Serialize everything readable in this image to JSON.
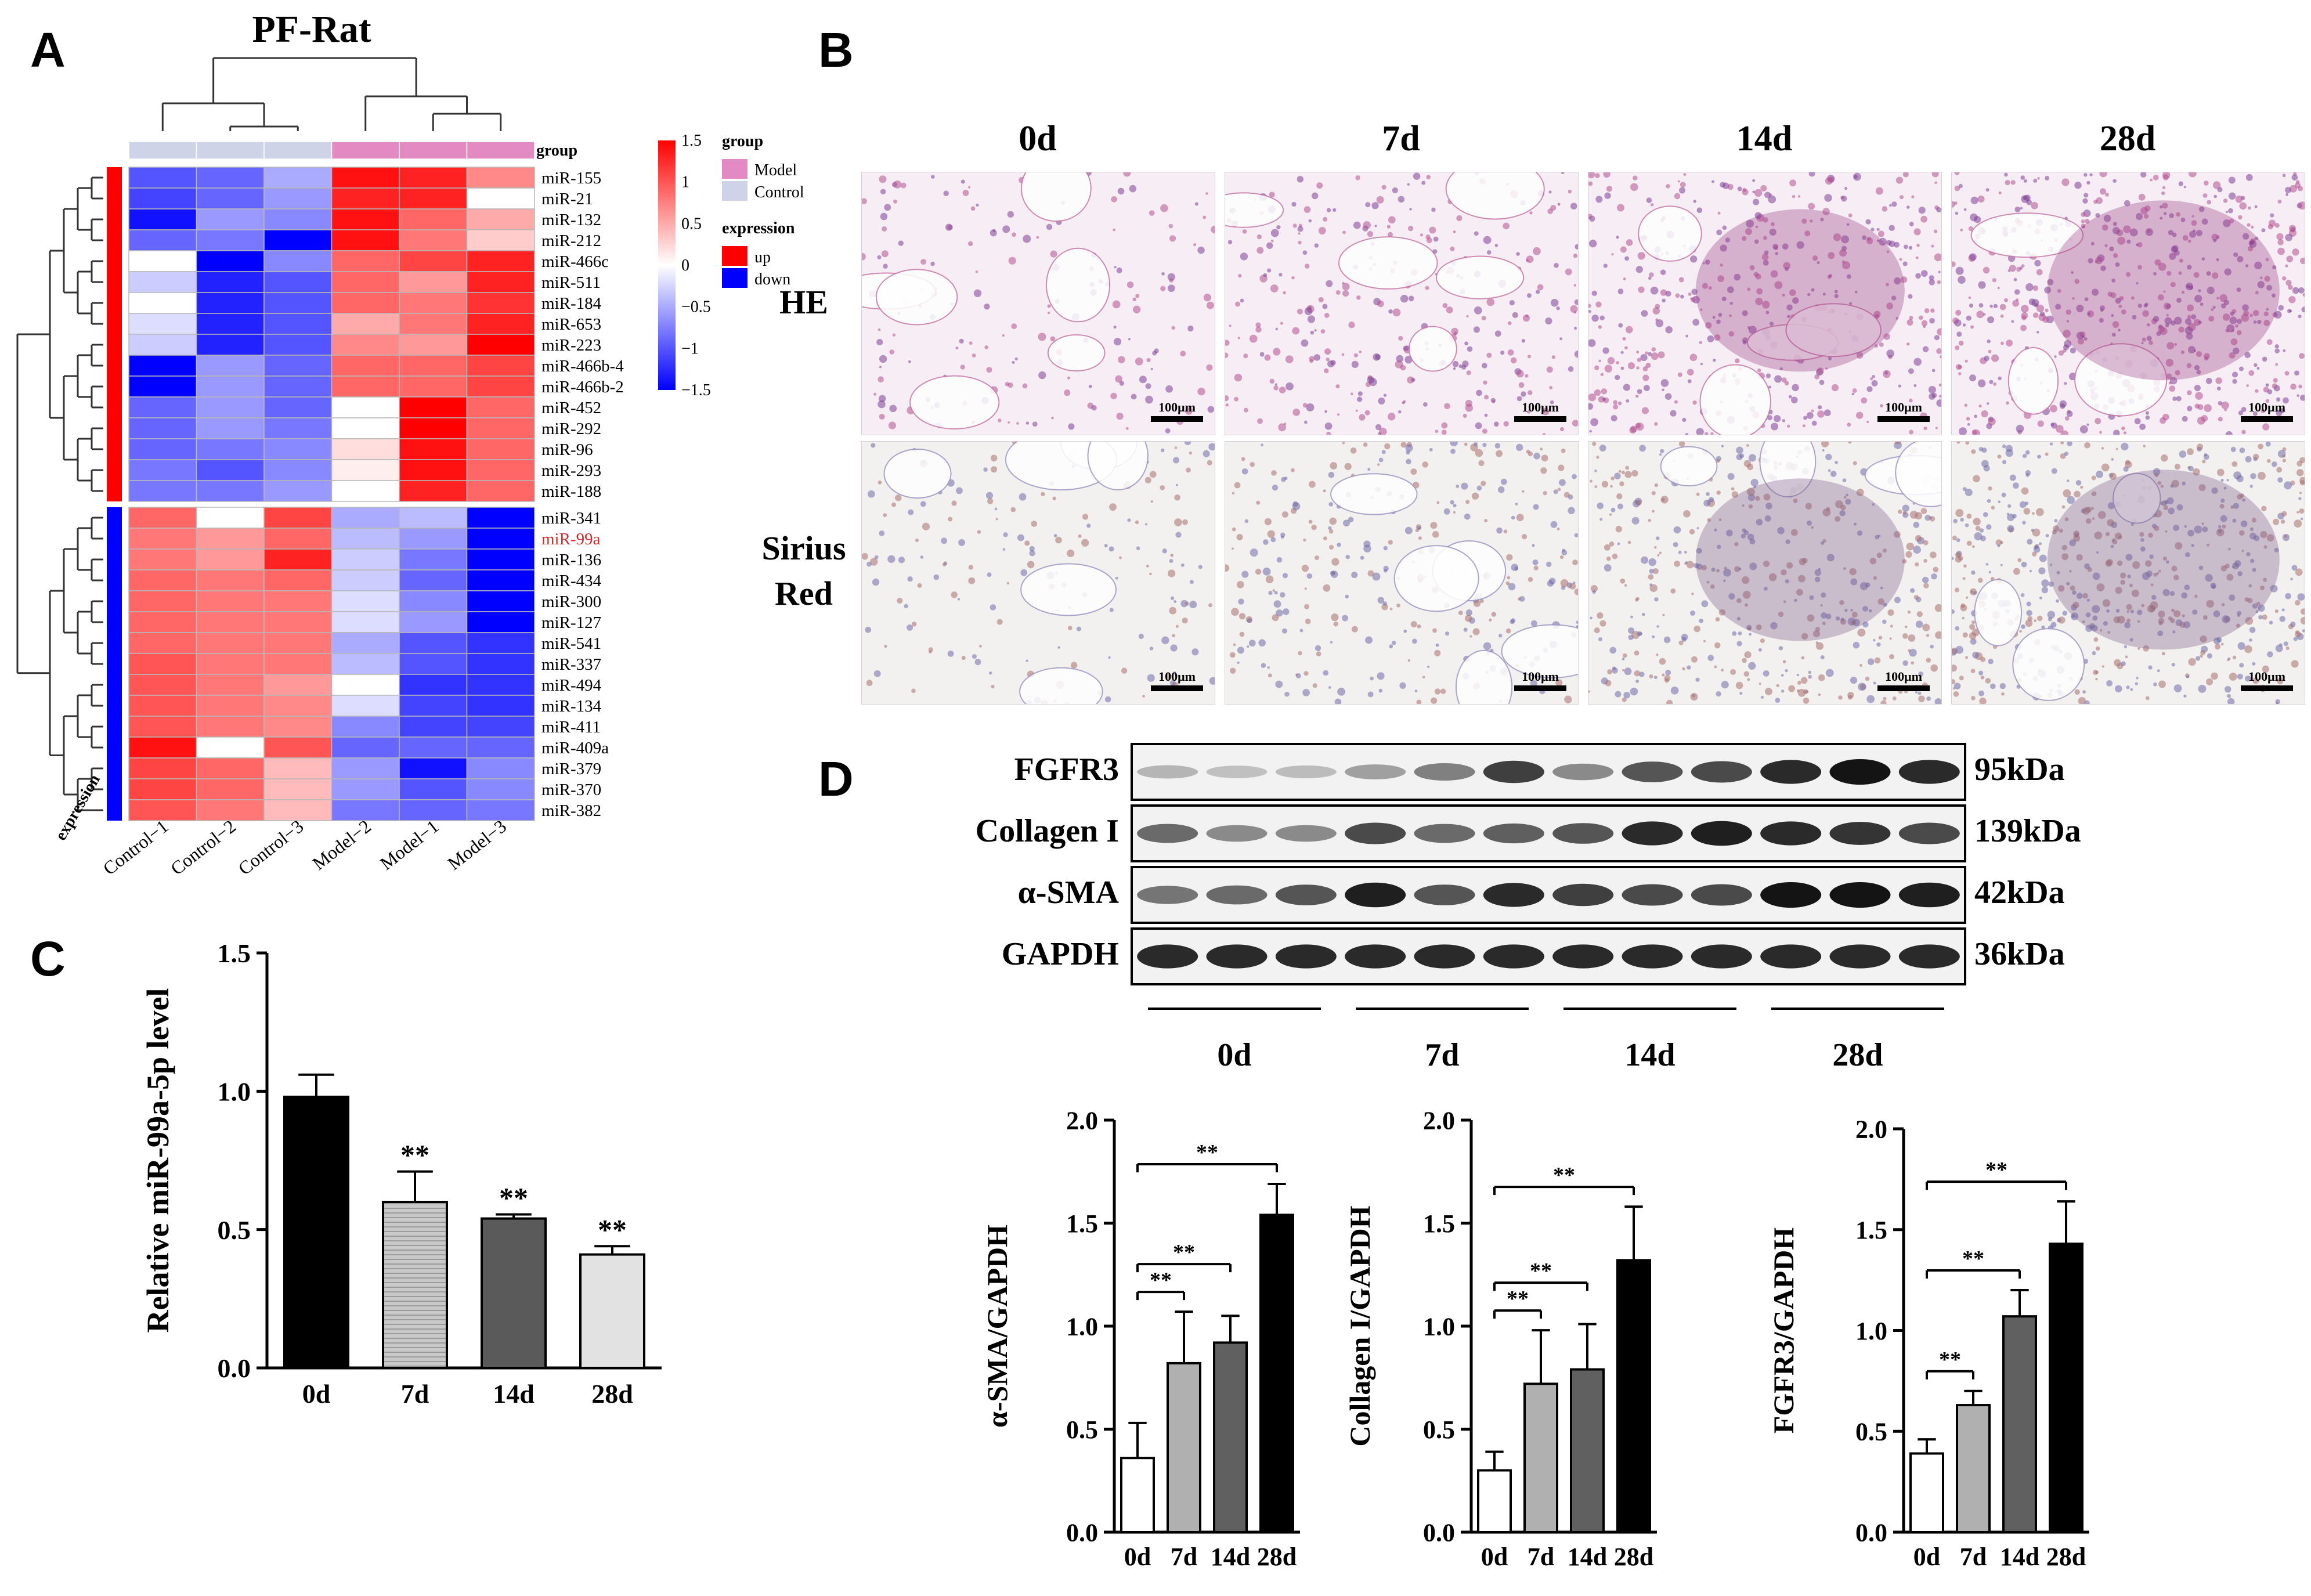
{
  "panels": {
    "a": "A",
    "b": "B",
    "c": "C",
    "d": "D"
  },
  "heatmap": {
    "title": "PF-Rat",
    "group_header": "group",
    "expression_axis_label": "expression",
    "columns": [
      "Control−1",
      "Control−2",
      "Control−3",
      "Model−2",
      "Model−1",
      "Model−3"
    ],
    "column_groups": [
      "Control",
      "Control",
      "Control",
      "Model",
      "Model",
      "Model"
    ],
    "rows": [
      {
        "name": "miR-155",
        "group": "up",
        "values": [
          -1.0,
          -0.9,
          -0.5,
          1.4,
          1.3,
          0.7
        ]
      },
      {
        "name": "miR-21",
        "group": "up",
        "values": [
          -1.1,
          -0.9,
          -0.6,
          1.3,
          1.3,
          0.0
        ]
      },
      {
        "name": "miR-132",
        "group": "up",
        "values": [
          -1.4,
          -0.6,
          -0.7,
          1.4,
          0.9,
          0.5
        ]
      },
      {
        "name": "miR-212",
        "group": "up",
        "values": [
          -0.9,
          -0.8,
          -1.5,
          1.4,
          0.8,
          0.3
        ]
      },
      {
        "name": "miR-466c",
        "group": "up",
        "values": [
          0.0,
          -1.8,
          -0.7,
          0.9,
          1.1,
          1.3
        ]
      },
      {
        "name": "miR-511",
        "group": "up",
        "values": [
          -0.3,
          -1.3,
          -1.0,
          0.9,
          0.6,
          1.3
        ]
      },
      {
        "name": "miR-184",
        "group": "up",
        "values": [
          0.0,
          -1.3,
          -1.0,
          0.9,
          0.8,
          1.2
        ]
      },
      {
        "name": "miR-653",
        "group": "up",
        "values": [
          -0.2,
          -1.3,
          -1.0,
          0.5,
          0.8,
          1.3
        ]
      },
      {
        "name": "miR-223",
        "group": "up",
        "values": [
          -0.3,
          -1.3,
          -1.0,
          0.7,
          0.6,
          1.5
        ]
      },
      {
        "name": "miR-466b-4",
        "group": "up",
        "values": [
          -1.5,
          -0.6,
          -0.9,
          0.9,
          0.9,
          1.1
        ]
      },
      {
        "name": "miR-466b-2",
        "group": "up",
        "values": [
          -1.5,
          -0.6,
          -0.9,
          0.9,
          0.9,
          1.1
        ]
      },
      {
        "name": "miR-452",
        "group": "up",
        "values": [
          -0.9,
          -0.6,
          -0.9,
          0.0,
          1.5,
          0.9
        ]
      },
      {
        "name": "miR-292",
        "group": "up",
        "values": [
          -0.9,
          -0.6,
          -0.8,
          0.0,
          1.5,
          0.9
        ]
      },
      {
        "name": "miR-96",
        "group": "up",
        "values": [
          -0.9,
          -0.8,
          -0.7,
          0.2,
          1.4,
          0.9
        ]
      },
      {
        "name": "miR-293",
        "group": "up",
        "values": [
          -0.8,
          -1.0,
          -0.7,
          0.1,
          1.4,
          0.9
        ]
      },
      {
        "name": "miR-188",
        "group": "up",
        "values": [
          -0.8,
          -0.8,
          -0.6,
          0.0,
          1.3,
          0.9
        ]
      },
      {
        "name": "miR-341",
        "group": "down",
        "values": [
          0.9,
          0.0,
          1.1,
          -0.5,
          -0.4,
          -1.5
        ]
      },
      {
        "name": "miR-99a",
        "group": "down",
        "values": [
          0.8,
          0.6,
          0.9,
          -0.4,
          -0.6,
          -1.5
        ]
      },
      {
        "name": "miR-136",
        "group": "down",
        "values": [
          0.8,
          0.6,
          1.3,
          -0.3,
          -0.8,
          -1.5
        ]
      },
      {
        "name": "miR-434",
        "group": "down",
        "values": [
          0.9,
          0.8,
          0.9,
          -0.3,
          -0.9,
          -1.5
        ]
      },
      {
        "name": "miR-300",
        "group": "down",
        "values": [
          0.9,
          0.8,
          0.8,
          -0.2,
          -0.7,
          -1.5
        ]
      },
      {
        "name": "miR-127",
        "group": "down",
        "values": [
          0.9,
          0.8,
          0.8,
          -0.2,
          -0.6,
          -1.5
        ]
      },
      {
        "name": "miR-541",
        "group": "down",
        "values": [
          0.9,
          0.8,
          0.8,
          -0.5,
          -1.0,
          -1.2
        ]
      },
      {
        "name": "miR-337",
        "group": "down",
        "values": [
          1.0,
          0.8,
          0.8,
          -0.4,
          -1.0,
          -1.2
        ]
      },
      {
        "name": "miR-494",
        "group": "down",
        "values": [
          1.0,
          0.8,
          0.6,
          0.0,
          -1.2,
          -1.2
        ]
      },
      {
        "name": "miR-134",
        "group": "down",
        "values": [
          1.0,
          0.8,
          0.7,
          -0.2,
          -1.1,
          -1.2
        ]
      },
      {
        "name": "miR-411",
        "group": "down",
        "values": [
          1.0,
          0.8,
          0.7,
          -0.7,
          -1.1,
          -1.1
        ]
      },
      {
        "name": "miR-409a",
        "group": "down",
        "values": [
          1.4,
          0.0,
          1.0,
          -0.9,
          -0.9,
          -0.9
        ]
      },
      {
        "name": "miR-379",
        "group": "down",
        "values": [
          1.1,
          0.9,
          0.4,
          -0.6,
          -1.4,
          -0.7
        ]
      },
      {
        "name": "miR-370",
        "group": "down",
        "values": [
          1.1,
          0.9,
          0.4,
          -0.6,
          -1.0,
          -0.7
        ]
      },
      {
        "name": "miR-382",
        "group": "down",
        "values": [
          1.0,
          0.8,
          0.4,
          -0.8,
          -0.9,
          -0.8
        ]
      }
    ],
    "highlight_row": "miR-99a",
    "highlight_color": "#d22b2b",
    "legend": {
      "group_title": "group",
      "group_items": [
        {
          "label": "Model",
          "color": "#e48ac2"
        },
        {
          "label": "Control",
          "color": "#cfd3e8"
        }
      ],
      "expression_title": "expression",
      "expression_items": [
        {
          "label": "up",
          "color": "#ff0000"
        },
        {
          "label": "down",
          "color": "#0000ff"
        }
      ],
      "scale_ticks": [
        "1.5",
        "1",
        "0.5",
        "0",
        "−0.5",
        "−1",
        "−1.5"
      ],
      "scale_values": [
        1.5,
        1,
        0.5,
        0,
        -0.5,
        -1,
        -1.5
      ]
    },
    "colors": {
      "high": "#ff0000",
      "mid": "#ffffff",
      "low": "#0000ff"
    }
  },
  "micrographs": {
    "columns": [
      "0d",
      "7d",
      "14d",
      "28d"
    ],
    "rows": [
      {
        "label_lines": [
          "HE"
        ],
        "stain": "he"
      },
      {
        "label_lines": [
          "Sirius",
          "Red"
        ],
        "stain": "sirius"
      }
    ],
    "scale_bar_label": "100μm"
  },
  "chart_data": [
    {
      "id": "C",
      "type": "bar",
      "categories": [
        "0d",
        "7d",
        "14d",
        "28d"
      ],
      "values": [
        0.98,
        0.6,
        0.54,
        0.41
      ],
      "errors": [
        0.08,
        0.11,
        0.015,
        0.03
      ],
      "significance": [
        "",
        "**",
        "**",
        "**"
      ],
      "ylabel": "Relative miR-99a-5p level",
      "ylim": [
        0,
        1.5
      ],
      "yticks": [
        "0.0",
        "0.5",
        "1.0",
        "1.5"
      ],
      "ytick_values": [
        0,
        0.5,
        1,
        1.5
      ],
      "fills": [
        "black",
        "lightgray-striped",
        "darkgray",
        "white-gray"
      ]
    },
    {
      "id": "D1",
      "type": "bar",
      "categories": [
        "0d",
        "7d",
        "14d",
        "28d"
      ],
      "values": [
        0.36,
        0.82,
        0.92,
        1.54
      ],
      "errors": [
        0.17,
        0.25,
        0.13,
        0.15
      ],
      "brackets": [
        {
          "from": 0,
          "to": 1,
          "label": "**"
        },
        {
          "from": 0,
          "to": 2,
          "label": "**"
        },
        {
          "from": 0,
          "to": 3,
          "label": "**"
        }
      ],
      "ylabel": "α-SMA/GAPDH",
      "ylim": [
        0,
        2.0
      ],
      "yticks": [
        "0.0",
        "0.5",
        "1.0",
        "1.5",
        "2.0"
      ],
      "ytick_values": [
        0,
        0.5,
        1,
        1.5,
        2
      ]
    },
    {
      "id": "D2",
      "type": "bar",
      "categories": [
        "0d",
        "7d",
        "14d",
        "28d"
      ],
      "values": [
        0.3,
        0.72,
        0.79,
        1.32
      ],
      "errors": [
        0.09,
        0.26,
        0.22,
        0.26
      ],
      "brackets": [
        {
          "from": 0,
          "to": 1,
          "label": "**"
        },
        {
          "from": 0,
          "to": 2,
          "label": "**"
        },
        {
          "from": 0,
          "to": 3,
          "label": "**"
        }
      ],
      "ylabel": "Collagen I/GAPDH",
      "ylim": [
        0,
        2.0
      ],
      "yticks": [
        "0.0",
        "0.5",
        "1.0",
        "1.5",
        "2.0"
      ],
      "ytick_values": [
        0,
        0.5,
        1,
        1.5,
        2
      ]
    },
    {
      "id": "D3",
      "type": "bar",
      "categories": [
        "0d",
        "7d",
        "14d",
        "28d"
      ],
      "values": [
        0.39,
        0.63,
        1.07,
        1.43
      ],
      "errors": [
        0.07,
        0.07,
        0.13,
        0.21
      ],
      "brackets": [
        {
          "from": 0,
          "to": 1,
          "label": "**"
        },
        {
          "from": 0,
          "to": 2,
          "label": "**"
        },
        {
          "from": 0,
          "to": 3,
          "label": "**"
        }
      ],
      "ylabel": "FGFR3/GAPDH",
      "ylim": [
        0,
        2.0
      ],
      "yticks": [
        "0.0",
        "0.5",
        "1.0",
        "1.5",
        "2.0"
      ],
      "ytick_values": [
        0,
        0.5,
        1,
        1.5,
        2
      ]
    }
  ],
  "western_blot": {
    "rows": [
      {
        "name": "FGFR3",
        "kda": "95kDa",
        "intensities": [
          0.25,
          0.2,
          0.22,
          0.35,
          0.5,
          0.8,
          0.45,
          0.7,
          0.75,
          0.9,
          1.0,
          0.9
        ]
      },
      {
        "name": "Collagen I",
        "kda": "139kDa",
        "intensities": [
          0.6,
          0.45,
          0.45,
          0.75,
          0.6,
          0.65,
          0.7,
          0.9,
          0.95,
          0.9,
          0.85,
          0.75
        ]
      },
      {
        "name": "α-SMA",
        "kda": "42kDa",
        "intensities": [
          0.55,
          0.6,
          0.7,
          0.95,
          0.7,
          0.9,
          0.8,
          0.75,
          0.75,
          1.0,
          1.0,
          0.95
        ]
      },
      {
        "name": "GAPDH",
        "kda": "36kDa",
        "intensities": [
          0.9,
          0.9,
          0.9,
          0.9,
          0.9,
          0.9,
          0.9,
          0.9,
          0.9,
          0.9,
          0.9,
          0.9
        ]
      }
    ],
    "groups": [
      "0d",
      "7d",
      "14d",
      "28d"
    ]
  }
}
